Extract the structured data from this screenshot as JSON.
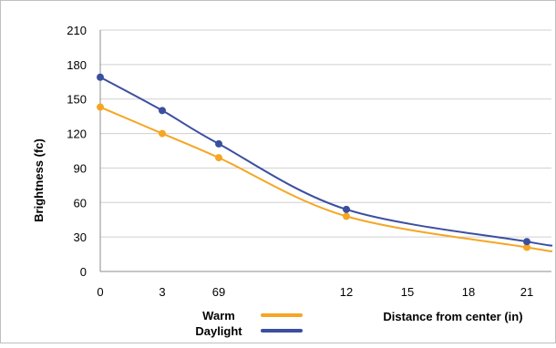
{
  "chart_data": {
    "type": "line",
    "title": "",
    "xlabel": "Distance from center (in)",
    "ylabel": "Brightness (fc)",
    "ylim": [
      0,
      210
    ],
    "y_ticks": [
      "0",
      "30",
      "60",
      "90",
      "120",
      "150",
      "180",
      "210"
    ],
    "x_ticks": [
      "0",
      "3",
      "69",
      "12",
      "15",
      "18",
      "21"
    ],
    "grid": "horizontal",
    "legend_position": "bottom-left",
    "series": [
      {
        "name": "Warm",
        "color": "#F5A623",
        "x": [
          "0",
          "3",
          "69",
          "12",
          "21"
        ],
        "values": [
          143,
          120,
          99,
          48,
          21
        ]
      },
      {
        "name": "Daylight",
        "color": "#3B4FA0",
        "x": [
          "0",
          "3",
          "69",
          "12",
          "21"
        ],
        "values": [
          169,
          140,
          111,
          54,
          26
        ]
      }
    ]
  }
}
